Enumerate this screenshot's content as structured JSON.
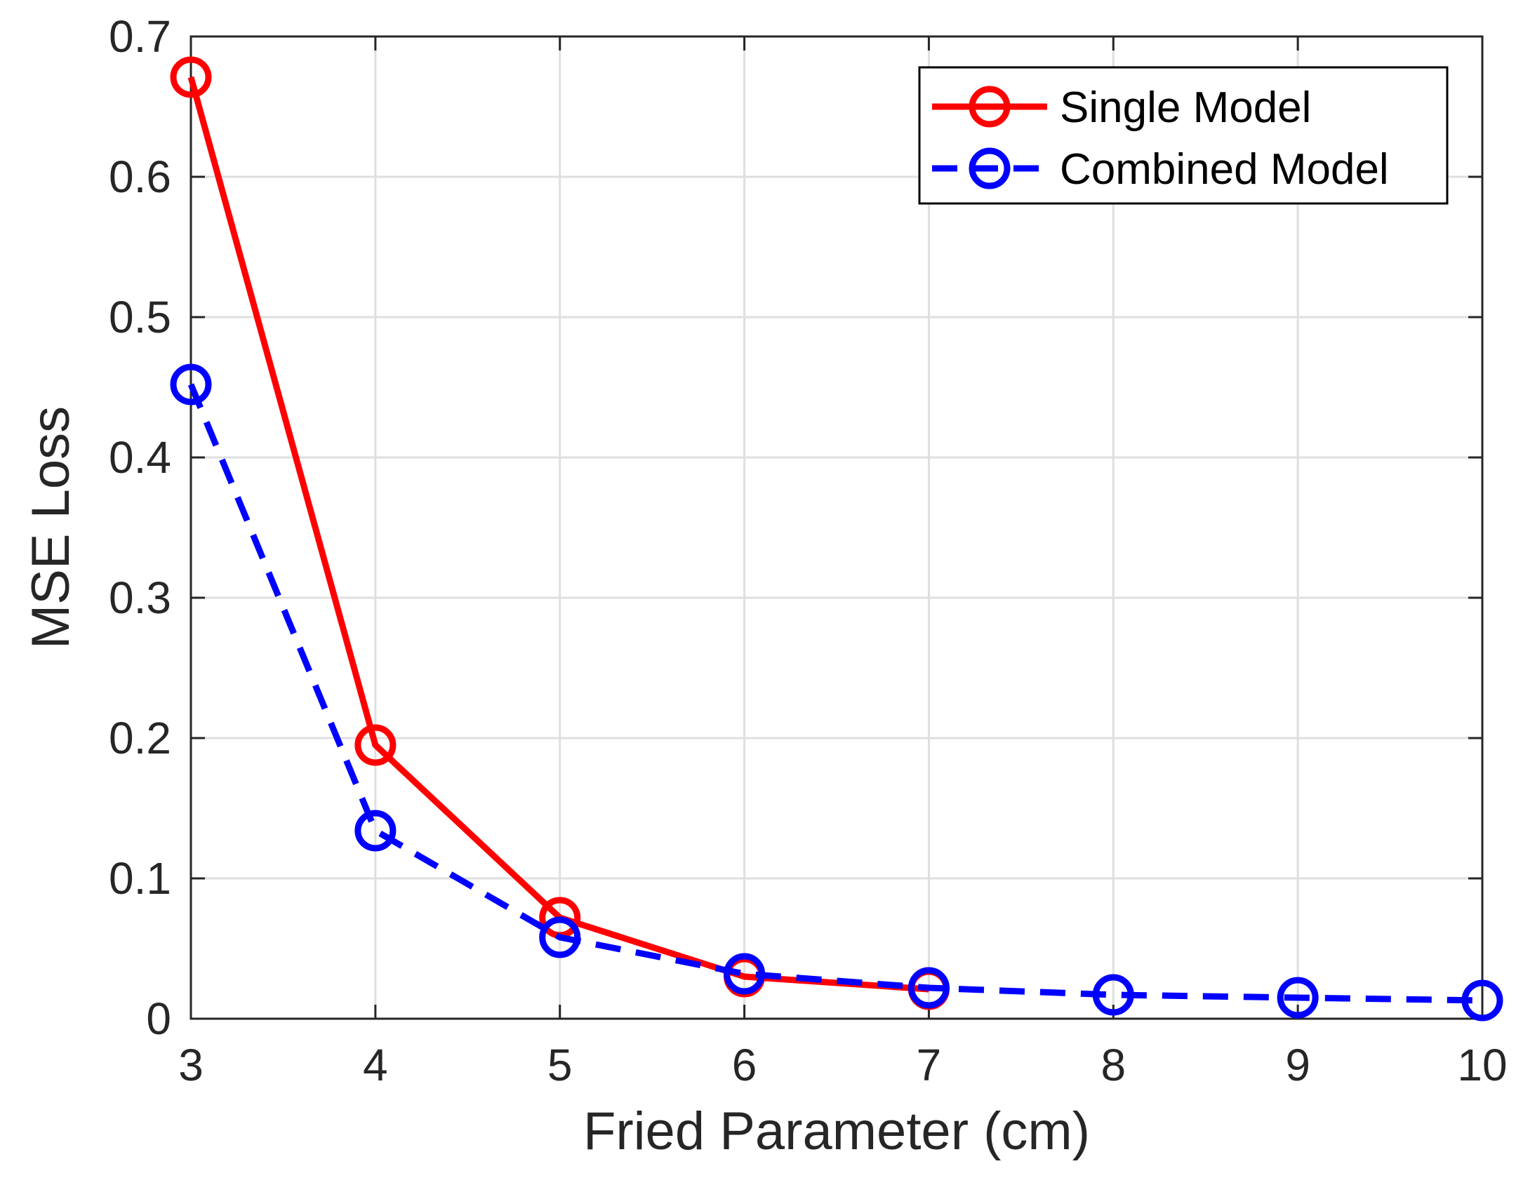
{
  "chart_data": {
    "type": "line",
    "title": "",
    "xlabel": "Fried Parameter (cm)",
    "ylabel": "MSE Loss",
    "xlim": [
      3,
      10
    ],
    "ylim": [
      0,
      0.7
    ],
    "xticks": [
      3,
      4,
      5,
      6,
      7,
      8,
      9,
      10
    ],
    "yticks": [
      0,
      0.1,
      0.2,
      0.3,
      0.4,
      0.5,
      0.6,
      0.7
    ],
    "xtick_labels": [
      "3",
      "4",
      "5",
      "6",
      "7",
      "8",
      "9",
      "10"
    ],
    "ytick_labels": [
      "0",
      "0.1",
      "0.2",
      "0.3",
      "0.4",
      "0.5",
      "0.6",
      "0.7"
    ],
    "grid": true,
    "legend_position": "top-right",
    "series": [
      {
        "name": "Single Model",
        "color": "#ff0000",
        "line_style": "solid",
        "marker": "circle",
        "x": [
          3,
          4,
          5,
          6,
          7
        ],
        "values": [
          0.671,
          0.195,
          0.072,
          0.03,
          0.021
        ]
      },
      {
        "name": "Combined Model",
        "color": "#0000ff",
        "line_style": "dashed",
        "marker": "circle",
        "x": [
          3,
          4,
          5,
          6,
          7,
          8,
          9,
          10
        ],
        "values": [
          0.452,
          0.134,
          0.058,
          0.032,
          0.022,
          0.017,
          0.015,
          0.013
        ]
      }
    ]
  }
}
